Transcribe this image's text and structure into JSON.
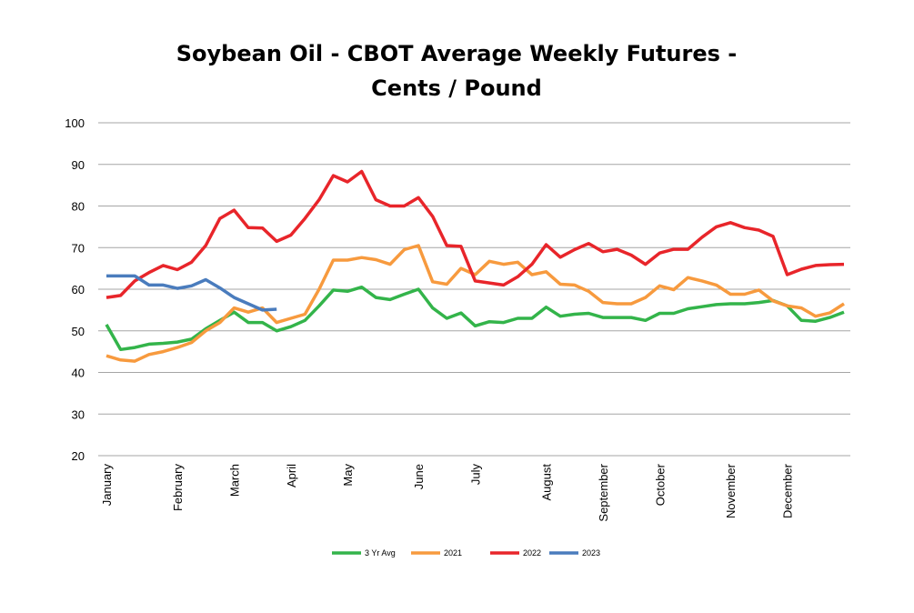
{
  "chart_data": {
    "type": "line",
    "title": "Soybean Oil - CBOT Average Weekly Futures - Cents / Pound",
    "categories": [
      "January",
      null,
      null,
      null,
      null,
      "February",
      null,
      null,
      null,
      "March",
      null,
      null,
      null,
      "April",
      null,
      null,
      null,
      "May",
      null,
      null,
      null,
      null,
      "June",
      null,
      null,
      null,
      "July",
      null,
      null,
      null,
      null,
      "August",
      null,
      null,
      null,
      "September",
      null,
      null,
      null,
      "October",
      null,
      null,
      null,
      null,
      "November",
      null,
      null,
      null,
      "December",
      null,
      null,
      null,
      null
    ],
    "series": [
      {
        "name": "3 Yr Avg",
        "color": "#33b44a",
        "values": [
          51.5,
          45.5,
          46,
          46.8,
          47,
          47.3,
          48,
          50.5,
          52.5,
          54.5,
          52,
          52,
          50,
          51,
          52.5,
          56,
          59.8,
          59.5,
          60.5,
          58,
          57.5,
          58.8,
          60,
          55.5,
          53,
          54.3,
          51.2,
          52.2,
          52,
          53,
          53,
          55.7,
          53.5,
          54,
          54.2,
          53.2,
          53.2,
          53.2,
          52.5,
          54.2,
          54.2,
          55.3,
          55.8,
          56.3,
          56.5,
          56.5,
          56.8,
          57.3,
          56,
          52.5,
          52.3,
          53.2,
          54.5
        ]
      },
      {
        "name": "2021",
        "color": "#f79a3e",
        "values": [
          44,
          43,
          42.7,
          44.3,
          45,
          46,
          47.2,
          50,
          52,
          55.5,
          54.5,
          55.5,
          52,
          53,
          54,
          60,
          67,
          67,
          67.6,
          67.1,
          66,
          69.5,
          70.5,
          61.8,
          61.2,
          65,
          63.5,
          66.7,
          66,
          66.5,
          63.5,
          64.2,
          61.2,
          61,
          59.5,
          56.8,
          56.5,
          56.5,
          58,
          60.8,
          59.9,
          62.8,
          62,
          61,
          58.8,
          58.8,
          59.8,
          57.2,
          56,
          55.5,
          53.5,
          54.3,
          56.5
        ]
      },
      {
        "name": "2022",
        "color": "#e8252a",
        "values": [
          58,
          58.5,
          62,
          64,
          65.7,
          64.7,
          66.5,
          70.5,
          77,
          79,
          74.8,
          74.7,
          71.5,
          73,
          77,
          81.5,
          87.3,
          85.8,
          88.3,
          81.5,
          80,
          80,
          82,
          77.5,
          70.5,
          70.3,
          62,
          61.5,
          61,
          63,
          66,
          70.7,
          67.7,
          69.5,
          71,
          69,
          69.6,
          68.2,
          66,
          68.7,
          69.6,
          69.6,
          72.5,
          75,
          76,
          74.8,
          74.2,
          72.7,
          63.5,
          64.8,
          65.7,
          65.9,
          66
        ]
      },
      {
        "name": "2023",
        "color": "#4a7cbd",
        "values": [
          63.2,
          63.2,
          63.2,
          61,
          61,
          60.2,
          60.8,
          62.3,
          60.3,
          58,
          56.5,
          55,
          55.2,
          null,
          null,
          null,
          null,
          null,
          null,
          null,
          null,
          null,
          null,
          null,
          null,
          null,
          null,
          null,
          null,
          null,
          null,
          null,
          null,
          null,
          null,
          null,
          null,
          null,
          null,
          null,
          null,
          null,
          null,
          null,
          null,
          null,
          null,
          null,
          null,
          null,
          null,
          null,
          null
        ]
      }
    ],
    "ylim": [
      20,
      100
    ],
    "yticks": [
      20,
      30,
      40,
      50,
      60,
      70,
      80,
      90,
      100
    ],
    "grid": true,
    "legend": "bottom"
  }
}
